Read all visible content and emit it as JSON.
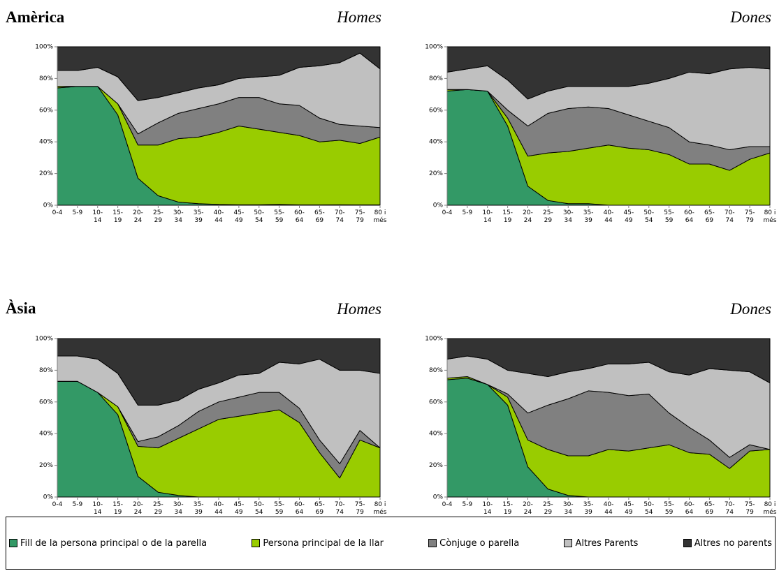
{
  "regions": [
    "Amèrica",
    "Àsia"
  ],
  "legend": [
    {
      "name": "Fill de la persona principal o de la parella",
      "color": "#339966"
    },
    {
      "name": "Persona principal de la llar",
      "color": "#99cc00"
    },
    {
      "name": "Cònjuge o parella",
      "color": "#808080"
    },
    {
      "name": "Altres Parents",
      "color": "#c0c0c0"
    },
    {
      "name": "Altres no parents",
      "color": "#333333"
    }
  ],
  "chart_data": [
    {
      "type": "stacked_area",
      "title": "Homes",
      "categories": [
        "0-4",
        "5-9",
        "10-14",
        "15-19",
        "20-24",
        "25-29",
        "30-34",
        "35-39",
        "40-44",
        "45-49",
        "50-54",
        "55-59",
        "60-64",
        "65-69",
        "70-74",
        "75-79",
        "80 i més"
      ],
      "ylim": [
        0,
        100
      ],
      "yticks": [
        {
          "value": 0,
          "label": "0%"
        },
        {
          "value": 20,
          "label": "20%"
        },
        {
          "value": 40,
          "label": "40%"
        },
        {
          "value": 60,
          "label": "60%"
        },
        {
          "value": 80,
          "label": "80%"
        },
        {
          "value": 100,
          "label": "100%"
        }
      ],
      "series": [
        {
          "values": [
            74,
            75,
            75,
            57,
            17,
            6,
            2,
            1,
            0.5,
            0.3,
            0.3,
            0.5,
            0.2,
            0.2,
            0.3,
            0.2,
            0.2
          ]
        },
        {
          "values": [
            1,
            0,
            0,
            7,
            21,
            32,
            40,
            42,
            45.5,
            49.7,
            47.7,
            45.5,
            43.8,
            39.8,
            40.7,
            38.8,
            42.8
          ]
        },
        {
          "values": [
            0,
            0,
            0,
            0,
            7,
            14,
            16,
            18,
            18,
            18,
            20,
            18,
            19,
            15,
            10,
            11,
            6
          ]
        },
        {
          "values": [
            10,
            10,
            12,
            17,
            21,
            16,
            13,
            13,
            12,
            12,
            13,
            18,
            24,
            33,
            39,
            46,
            37
          ]
        },
        {
          "values": [
            15,
            15,
            13,
            19,
            34,
            32,
            29,
            26,
            24,
            20,
            19,
            18,
            13,
            12,
            10,
            4,
            14
          ]
        }
      ]
    },
    {
      "type": "stacked_area",
      "title": "Dones",
      "categories": [
        "0-4",
        "5-9",
        "10-14",
        "15-19",
        "20-24",
        "25-29",
        "30-34",
        "35-39",
        "40-44",
        "45-49",
        "50-54",
        "55-59",
        "60-64",
        "65-69",
        "70-74",
        "75-79",
        "80 i més"
      ],
      "ylim": [
        0,
        100
      ],
      "yticks": [
        {
          "value": 0,
          "label": "0%"
        },
        {
          "value": 20,
          "label": "20%"
        },
        {
          "value": 40,
          "label": "40%"
        },
        {
          "value": 60,
          "label": "60%"
        },
        {
          "value": 80,
          "label": "80%"
        },
        {
          "value": 100,
          "label": "100%"
        }
      ],
      "series": [
        {
          "values": [
            72,
            73,
            72,
            50,
            12,
            3,
            1,
            1,
            0,
            0,
            0,
            0,
            0,
            0,
            0,
            0,
            0
          ]
        },
        {
          "values": [
            1,
            0,
            0,
            5,
            19,
            30,
            33,
            35,
            38,
            36,
            35,
            32,
            26,
            26,
            22,
            29,
            33
          ]
        },
        {
          "values": [
            0,
            0,
            0,
            5,
            19,
            25,
            27,
            26,
            23,
            21,
            18,
            17,
            14,
            12,
            13,
            8,
            4
          ]
        },
        {
          "values": [
            11,
            13,
            16,
            19,
            17,
            14,
            14,
            13,
            14,
            18,
            24,
            31,
            44,
            45,
            51,
            50,
            49
          ]
        },
        {
          "values": [
            16,
            14,
            12,
            21,
            33,
            28,
            25,
            25,
            25,
            25,
            23,
            20,
            16,
            17,
            14,
            13,
            14
          ]
        }
      ]
    },
    {
      "type": "stacked_area",
      "title": "Homes",
      "categories": [
        "0-4",
        "5-9",
        "10-14",
        "15-19",
        "20-24",
        "25-29",
        "30-34",
        "35-39",
        "40-44",
        "45-49",
        "50-54",
        "55-59",
        "60-64",
        "65-69",
        "70-74",
        "75-79",
        "80 i més"
      ],
      "ylim": [
        0,
        100
      ],
      "yticks": [
        {
          "value": 0,
          "label": "0%"
        },
        {
          "value": 20,
          "label": "20%"
        },
        {
          "value": 40,
          "label": "40%"
        },
        {
          "value": 60,
          "label": "60%"
        },
        {
          "value": 80,
          "label": "80%"
        },
        {
          "value": 100,
          "label": "100%"
        }
      ],
      "series": [
        {
          "values": [
            73,
            73,
            66,
            52,
            13,
            3,
            1,
            0,
            0,
            0,
            0,
            0,
            0,
            0,
            0,
            0,
            0
          ]
        },
        {
          "values": [
            0,
            0,
            0,
            5,
            19,
            28,
            36,
            43,
            49,
            51,
            53,
            55,
            47,
            28,
            12,
            36,
            31
          ]
        },
        {
          "values": [
            0,
            0,
            0,
            0,
            3,
            7,
            8,
            11,
            11,
            12,
            13,
            11,
            9,
            8,
            9,
            6,
            0
          ]
        },
        {
          "values": [
            16,
            16,
            21,
            21,
            23,
            20,
            16,
            14,
            12,
            14,
            12,
            19,
            28,
            51,
            59,
            38,
            47
          ]
        },
        {
          "values": [
            11,
            11,
            13,
            22,
            42,
            42,
            39,
            32,
            28,
            23,
            22,
            15,
            16,
            13,
            20,
            20,
            22
          ]
        }
      ]
    },
    {
      "type": "stacked_area",
      "title": "Dones",
      "categories": [
        "0-4",
        "5-9",
        "10-14",
        "15-19",
        "20-24",
        "25-29",
        "30-34",
        "35-39",
        "40-44",
        "45-49",
        "50-54",
        "55-59",
        "60-64",
        "65-69",
        "70-74",
        "75-79",
        "80 i més"
      ],
      "ylim": [
        0,
        100
      ],
      "yticks": [
        {
          "value": 0,
          "label": "0%"
        },
        {
          "value": 20,
          "label": "20%"
        },
        {
          "value": 40,
          "label": "40%"
        },
        {
          "value": 60,
          "label": "60%"
        },
        {
          "value": 80,
          "label": "80%"
        },
        {
          "value": 100,
          "label": "100%"
        }
      ],
      "series": [
        {
          "values": [
            74,
            75,
            71,
            58,
            19,
            5,
            1,
            0,
            0,
            0,
            0,
            0,
            0,
            0,
            0,
            0,
            0
          ]
        },
        {
          "values": [
            1,
            1,
            0,
            5,
            17,
            25,
            25,
            26,
            30,
            29,
            31,
            33,
            28,
            27,
            18,
            29,
            30
          ]
        },
        {
          "values": [
            0,
            0,
            0,
            2,
            17,
            28,
            36,
            41,
            36,
            35,
            34,
            20,
            16,
            9,
            7,
            4,
            0
          ]
        },
        {
          "values": [
            12,
            13,
            16,
            15,
            25,
            18,
            17,
            14,
            18,
            20,
            20,
            26,
            33,
            45,
            55,
            46,
            42
          ]
        },
        {
          "values": [
            13,
            11,
            13,
            20,
            22,
            24,
            21,
            19,
            16,
            16,
            15,
            21,
            23,
            19,
            20,
            21,
            28
          ]
        }
      ]
    }
  ]
}
